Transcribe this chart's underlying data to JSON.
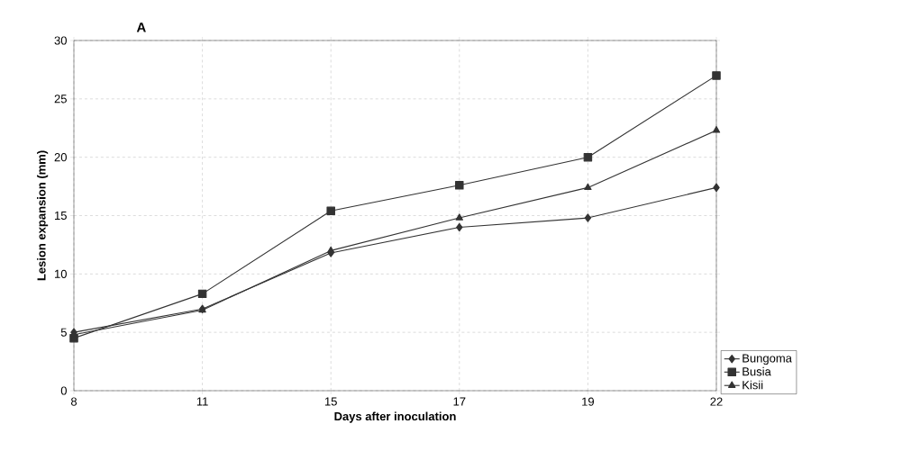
{
  "chart_data": {
    "type": "line",
    "title": "A",
    "xlabel": "Days after inoculation",
    "ylabel": "Lesion expansion (mm)",
    "categories": [
      "8",
      "11",
      "15",
      "17",
      "19",
      "22"
    ],
    "series": [
      {
        "name": "Bungoma",
        "color": "#333333",
        "marker": "diamond",
        "values": [
          5,
          7,
          11.8,
          14,
          14.8,
          17.4
        ]
      },
      {
        "name": "Busia",
        "color": "#333333",
        "marker": "square",
        "values": [
          4.5,
          8.3,
          15.4,
          17.6,
          20,
          27
        ]
      },
      {
        "name": "Kisii",
        "color": "#333333",
        "marker": "triangle",
        "values": [
          4.8,
          6.9,
          12,
          14.8,
          17.4,
          22.3
        ]
      }
    ],
    "ylim": [
      0,
      30
    ],
    "yticks": [
      0,
      5,
      10,
      15,
      20,
      25,
      30
    ],
    "grid": true,
    "legend": "right",
    "line_style": "solid"
  }
}
